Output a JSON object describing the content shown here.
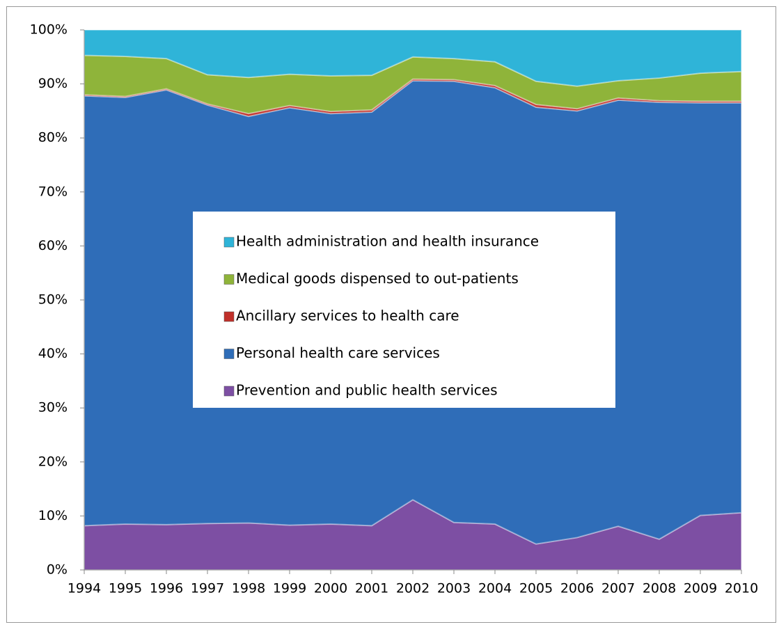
{
  "chart_data": {
    "type": "stacked-area",
    "x": [
      1994,
      1995,
      1996,
      1997,
      1998,
      1999,
      2000,
      2001,
      2002,
      2003,
      2004,
      2005,
      2006,
      2007,
      2008,
      2009,
      2010
    ],
    "series": [
      {
        "name": "Prevention and public health services",
        "color": "#7d4fa3",
        "values": [
          8.2,
          8.5,
          8.4,
          8.6,
          8.7,
          8.3,
          8.5,
          8.2,
          13.0,
          8.8,
          8.5,
          4.8,
          6.0,
          8.1,
          5.7,
          10.1,
          10.6
        ]
      },
      {
        "name": "Personal health care services",
        "color": "#2f6db8",
        "values": [
          79.6,
          79.0,
          80.5,
          77.5,
          75.3,
          77.3,
          76.0,
          76.6,
          77.6,
          81.7,
          80.8,
          80.9,
          79.0,
          78.9,
          80.9,
          76.4,
          75.9
        ]
      },
      {
        "name": "Ancillary services to health care",
        "color": "#c0302a",
        "values": [
          0.2,
          0.2,
          0.2,
          0.2,
          0.5,
          0.4,
          0.4,
          0.4,
          0.3,
          0.3,
          0.4,
          0.5,
          0.4,
          0.4,
          0.3,
          0.3,
          0.3
        ]
      },
      {
        "name": "Medical goods dispensed to out-patients",
        "color": "#8fb43a",
        "values": [
          7.3,
          7.4,
          5.6,
          5.4,
          6.7,
          5.8,
          6.6,
          6.4,
          4.1,
          3.9,
          4.4,
          4.3,
          4.2,
          3.2,
          4.2,
          5.2,
          5.5
        ]
      },
      {
        "name": "Health administration and health insurance",
        "color": "#2fb4d8",
        "values": [
          4.7,
          4.9,
          5.3,
          8.3,
          8.8,
          8.2,
          8.5,
          8.4,
          5.0,
          5.3,
          5.9,
          9.5,
          10.4,
          9.4,
          8.9,
          8.0,
          7.7
        ]
      }
    ],
    "xlim": [
      1994,
      2010
    ],
    "xticks": [
      1994,
      1995,
      1996,
      1997,
      1998,
      1999,
      2000,
      2001,
      2002,
      2003,
      2004,
      2005,
      2006,
      2007,
      2008,
      2009,
      2010
    ],
    "ylim": [
      0,
      100
    ],
    "yticks": [
      {
        "value": 0,
        "label": "0%"
      },
      {
        "value": 10,
        "label": "10%"
      },
      {
        "value": 20,
        "label": "20%"
      },
      {
        "value": 30,
        "label": "30%"
      },
      {
        "value": 40,
        "label": "40%"
      },
      {
        "value": 50,
        "label": "50%"
      },
      {
        "value": 60,
        "label": "60%"
      },
      {
        "value": 70,
        "label": "70%"
      },
      {
        "value": 80,
        "label": "80%"
      },
      {
        "value": 90,
        "label": "90%"
      },
      {
        "value": 100,
        "label": "100%"
      }
    ],
    "legend": "center"
  }
}
